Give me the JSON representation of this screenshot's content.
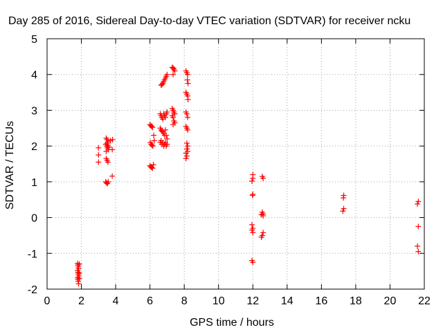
{
  "chart_data": {
    "type": "scatter",
    "title": "Day 285 of 2016, Sidereal Day-to-day VTEC variation (SDTVAR) for receiver ncku",
    "xlabel": "GPS time / hours",
    "ylabel": "SDTVAR / TECUs",
    "xlim": [
      0,
      22
    ],
    "ylim": [
      -2,
      5
    ],
    "xticks": [
      0,
      2,
      4,
      6,
      8,
      10,
      12,
      14,
      16,
      18,
      20,
      22
    ],
    "yticks": [
      -2,
      -1,
      0,
      1,
      2,
      3,
      4,
      5
    ],
    "grid": true,
    "marker": "+",
    "color": "#ff0000",
    "series": [
      {
        "name": "SDTVAR",
        "points": [
          [
            1.78,
            -1.28
          ],
          [
            1.8,
            -1.33
          ],
          [
            1.82,
            -1.38
          ],
          [
            1.84,
            -1.43
          ],
          [
            1.78,
            -1.48
          ],
          [
            1.8,
            -1.53
          ],
          [
            1.82,
            -1.58
          ],
          [
            1.84,
            -1.63
          ],
          [
            1.78,
            -1.68
          ],
          [
            1.8,
            -1.73
          ],
          [
            1.82,
            -1.78
          ],
          [
            1.84,
            -1.85
          ],
          [
            1.88,
            -1.3
          ],
          [
            1.88,
            -1.55
          ],
          [
            1.88,
            -1.7
          ],
          [
            3.0,
            1.95
          ],
          [
            3.0,
            1.75
          ],
          [
            3.0,
            1.55
          ],
          [
            3.45,
            2.22
          ],
          [
            3.5,
            2.18
          ],
          [
            3.55,
            2.12
          ],
          [
            3.42,
            2.05
          ],
          [
            3.48,
            2.0
          ],
          [
            3.52,
            1.95
          ],
          [
            3.58,
            1.9
          ],
          [
            3.45,
            1.85
          ],
          [
            3.5,
            2.08
          ],
          [
            3.55,
            2.02
          ],
          [
            3.6,
            1.97
          ],
          [
            3.45,
            1.65
          ],
          [
            3.5,
            1.6
          ],
          [
            3.55,
            1.55
          ],
          [
            3.42,
            1.0
          ],
          [
            3.47,
            0.97
          ],
          [
            3.52,
            0.95
          ],
          [
            3.57,
            1.0
          ],
          [
            3.7,
            2.15
          ],
          [
            3.82,
            2.18
          ],
          [
            3.8,
            1.9
          ],
          [
            3.8,
            1.16
          ],
          [
            6.0,
            2.6
          ],
          [
            6.05,
            2.57
          ],
          [
            6.1,
            2.55
          ],
          [
            6.15,
            2.52
          ],
          [
            6.02,
            2.1
          ],
          [
            6.07,
            2.05
          ],
          [
            6.12,
            2.02
          ],
          [
            6.17,
            2.0
          ],
          [
            6.22,
            2.3
          ],
          [
            6.25,
            2.15
          ],
          [
            6.0,
            1.45
          ],
          [
            6.05,
            1.42
          ],
          [
            6.1,
            1.4
          ],
          [
            6.15,
            1.38
          ],
          [
            6.2,
            1.48
          ],
          [
            6.6,
            2.9
          ],
          [
            6.65,
            2.85
          ],
          [
            6.7,
            2.8
          ],
          [
            6.75,
            2.75
          ],
          [
            6.8,
            2.9
          ],
          [
            6.85,
            2.85
          ],
          [
            6.9,
            2.8
          ],
          [
            6.95,
            2.9
          ],
          [
            7.0,
            2.95
          ],
          [
            6.6,
            2.5
          ],
          [
            6.65,
            2.45
          ],
          [
            6.7,
            2.42
          ],
          [
            6.75,
            2.4
          ],
          [
            6.8,
            2.35
          ],
          [
            6.85,
            2.3
          ],
          [
            6.9,
            2.45
          ],
          [
            6.95,
            2.3
          ],
          [
            7.0,
            2.2
          ],
          [
            6.6,
            2.1
          ],
          [
            6.65,
            2.15
          ],
          [
            6.7,
            2.05
          ],
          [
            6.75,
            2.1
          ],
          [
            6.8,
            2.0
          ],
          [
            6.85,
            2.05
          ],
          [
            6.9,
            2.1
          ],
          [
            6.95,
            2.0
          ],
          [
            7.0,
            2.05
          ],
          [
            6.65,
            3.7
          ],
          [
            6.7,
            3.72
          ],
          [
            6.75,
            3.75
          ],
          [
            6.8,
            3.8
          ],
          [
            6.85,
            3.85
          ],
          [
            6.9,
            3.9
          ],
          [
            6.95,
            3.95
          ],
          [
            7.0,
            4.0
          ],
          [
            7.3,
            4.2
          ],
          [
            7.35,
            4.18
          ],
          [
            7.4,
            4.15
          ],
          [
            7.45,
            4.1
          ],
          [
            7.35,
            4.0
          ],
          [
            7.3,
            3.05
          ],
          [
            7.35,
            3.0
          ],
          [
            7.4,
            2.95
          ],
          [
            7.45,
            2.9
          ],
          [
            7.3,
            2.85
          ],
          [
            7.35,
            2.8
          ],
          [
            7.4,
            2.7
          ],
          [
            7.45,
            2.65
          ],
          [
            7.35,
            2.6
          ],
          [
            8.1,
            4.1
          ],
          [
            8.15,
            4.05
          ],
          [
            8.2,
            4.0
          ],
          [
            8.18,
            3.85
          ],
          [
            8.22,
            3.75
          ],
          [
            8.1,
            3.5
          ],
          [
            8.15,
            3.45
          ],
          [
            8.2,
            3.4
          ],
          [
            8.22,
            3.3
          ],
          [
            8.1,
            2.95
          ],
          [
            8.15,
            2.9
          ],
          [
            8.2,
            2.8
          ],
          [
            8.1,
            2.55
          ],
          [
            8.15,
            2.5
          ],
          [
            8.2,
            2.45
          ],
          [
            8.15,
            2.08
          ],
          [
            8.2,
            2.0
          ],
          [
            8.15,
            1.92
          ],
          [
            8.2,
            1.85
          ],
          [
            8.1,
            1.8
          ],
          [
            8.15,
            1.72
          ],
          [
            8.1,
            1.65
          ],
          [
            12.0,
            1.2
          ],
          [
            12.0,
            1.1
          ],
          [
            11.95,
            1.02
          ],
          [
            12.0,
            0.65
          ],
          [
            11.98,
            0.62
          ],
          [
            11.95,
            -0.2
          ],
          [
            12.0,
            -0.3
          ],
          [
            11.95,
            -0.35
          ],
          [
            12.0,
            -0.42
          ],
          [
            11.95,
            -1.2
          ],
          [
            12.0,
            -1.25
          ],
          [
            12.55,
            1.15
          ],
          [
            12.6,
            1.1
          ],
          [
            12.55,
            0.15
          ],
          [
            12.6,
            0.1
          ],
          [
            12.5,
            0.08
          ],
          [
            12.6,
            0.05
          ],
          [
            12.6,
            -0.42
          ],
          [
            12.55,
            -0.5
          ],
          [
            12.5,
            -0.55
          ],
          [
            17.3,
            0.62
          ],
          [
            17.28,
            0.55
          ],
          [
            17.3,
            0.25
          ],
          [
            17.25,
            0.18
          ],
          [
            21.65,
            0.45
          ],
          [
            21.6,
            0.38
          ],
          [
            21.65,
            -0.25
          ],
          [
            21.6,
            -0.8
          ],
          [
            21.65,
            -0.95
          ]
        ]
      }
    ]
  }
}
